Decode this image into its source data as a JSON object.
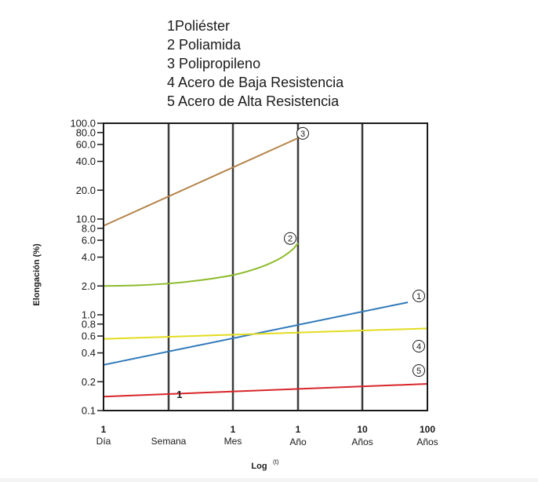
{
  "chart_data": {
    "type": "line",
    "title": "",
    "legend": {
      "placement": "top",
      "entries": [
        "1Poliéster",
        "2 Poliamida",
        "3 Polipropileno",
        "4 Acero de Baja Resistencia",
        "5 Acero de Alta Resistencia"
      ]
    },
    "xlabel": "Log",
    "xlabel_superscript": "(t)",
    "ylabel": "Elongación (%)",
    "y_scale": "log",
    "ylim": [
      0.1,
      100
    ],
    "grid": "vertical",
    "y_ticks": [
      {
        "value": 100,
        "label": "100.0"
      },
      {
        "value": 80,
        "label": "80.0"
      },
      {
        "value": 60,
        "label": "60.0"
      },
      {
        "value": 40,
        "label": "40.0"
      },
      {
        "value": 20,
        "label": "20.0"
      },
      {
        "value": 10,
        "label": "10.0"
      },
      {
        "value": 8,
        "label": "8.0"
      },
      {
        "value": 6,
        "label": "6.0"
      },
      {
        "value": 4,
        "label": "4.0"
      },
      {
        "value": 2,
        "label": "2.0"
      },
      {
        "value": 1,
        "label": "1.0"
      },
      {
        "value": 0.8,
        "label": "0.8"
      },
      {
        "value": 0.6,
        "label": "0.6"
      },
      {
        "value": 0.4,
        "label": "0.4"
      },
      {
        "value": 0.2,
        "label": "0.2"
      },
      {
        "value": 0.1,
        "label": "0.1"
      }
    ],
    "x_ticks": [
      {
        "id": "dia",
        "num": "1",
        "unit": "Día"
      },
      {
        "id": "semana",
        "num": "",
        "unit": "Semana"
      },
      {
        "id": "mes",
        "num": "1",
        "unit": "Mes"
      },
      {
        "id": "ano",
        "num": "1",
        "unit": "Año"
      },
      {
        "id": "10anos",
        "num": "10",
        "unit": "Años"
      },
      {
        "id": "100anos",
        "num": "100",
        "unit": "Años"
      }
    ],
    "series": [
      {
        "id": "3",
        "marker": "3",
        "color": "#b5834a",
        "points": [
          [
            0,
            8.5
          ],
          [
            3,
            70
          ]
        ]
      },
      {
        "id": "2",
        "marker": "2",
        "color": "#8dbb2b",
        "points": [
          [
            0,
            2.0
          ],
          [
            0.5,
            2.03
          ],
          [
            1.0,
            2.12
          ],
          [
            1.5,
            2.3
          ],
          [
            2.0,
            2.6
          ],
          [
            2.4,
            3.1
          ],
          [
            2.7,
            3.8
          ],
          [
            2.9,
            4.7
          ],
          [
            3.0,
            5.6
          ]
        ]
      },
      {
        "id": "1",
        "marker": "1",
        "color": "#2f78ba",
        "points": [
          [
            0,
            0.3
          ],
          [
            4.7,
            1.35
          ]
        ]
      },
      {
        "id": "4",
        "marker": "4",
        "color": "#e2dc21",
        "points": [
          [
            0,
            0.56
          ],
          [
            5,
            0.72
          ]
        ]
      },
      {
        "id": "5",
        "marker": "5",
        "color": "#d8262a",
        "points": [
          [
            0,
            0.14
          ],
          [
            5,
            0.19
          ]
        ]
      }
    ],
    "annotations": [
      {
        "text": "1",
        "x": 1.1,
        "y": 0.135
      }
    ]
  }
}
